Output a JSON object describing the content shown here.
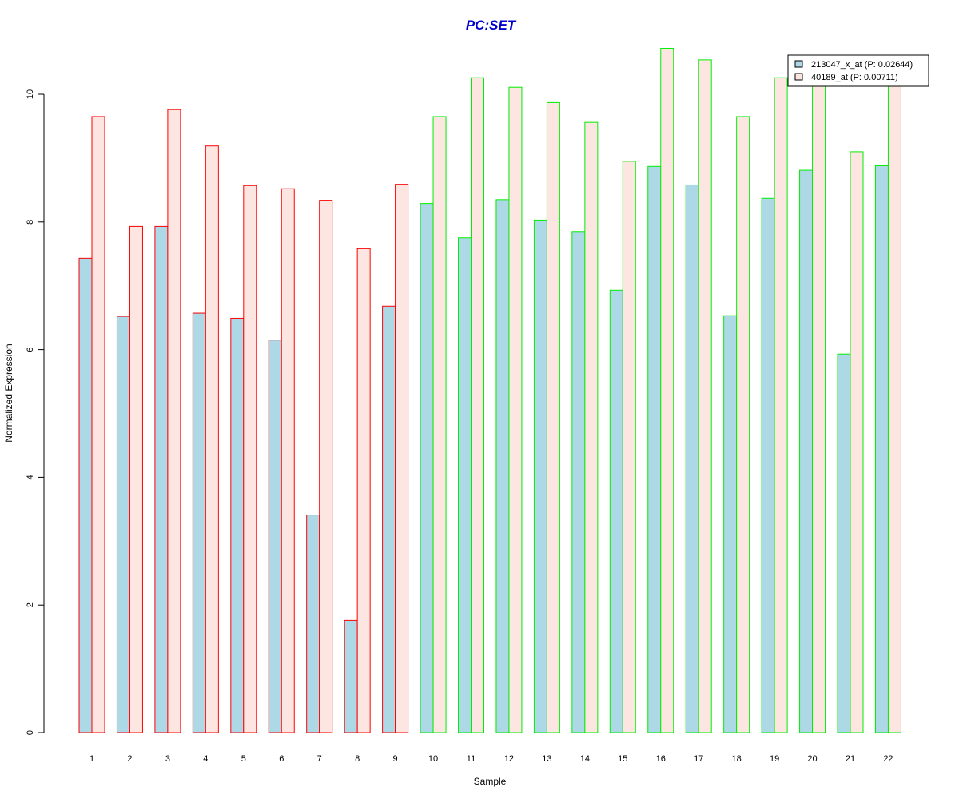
{
  "chart_data": {
    "type": "bar",
    "title": "PC:SET",
    "xlabel": "Sample",
    "ylabel": "Normalized Expression",
    "ylim": [
      0,
      10.75
    ],
    "yticks": [
      0,
      2,
      4,
      6,
      8,
      10
    ],
    "grid": false,
    "legend_position": "top-right",
    "categories": [
      "1",
      "2",
      "3",
      "4",
      "5",
      "6",
      "7",
      "8",
      "9",
      "10",
      "11",
      "12",
      "13",
      "14",
      "15",
      "16",
      "17",
      "18",
      "19",
      "20",
      "21",
      "22"
    ],
    "series": [
      {
        "name": "213047_x_at (P: 0.02644)",
        "fill": "#add8e6",
        "values": [
          7.43,
          6.52,
          7.93,
          6.57,
          6.49,
          6.15,
          3.41,
          1.76,
          6.68,
          8.29,
          7.75,
          8.35,
          8.03,
          7.85,
          6.93,
          8.87,
          8.58,
          6.53,
          8.37,
          8.81,
          5.93,
          8.88
        ]
      },
      {
        "name": "40189_at (P: 0.00711)",
        "fill": "#fde6e1",
        "values": [
          9.65,
          7.93,
          9.76,
          9.19,
          8.57,
          8.52,
          8.34,
          7.58,
          8.59,
          9.65,
          10.26,
          10.11,
          9.87,
          9.56,
          8.95,
          10.72,
          10.54,
          9.65,
          10.26,
          10.13,
          9.1,
          10.13
        ]
      }
    ],
    "groups": [
      {
        "samples": [
          1,
          9
        ],
        "border_color": "#ff0000"
      },
      {
        "samples": [
          10,
          22
        ],
        "border_color": "#00ee00"
      }
    ],
    "colors": {
      "title": "#0000cd",
      "axis": "#000000"
    }
  }
}
